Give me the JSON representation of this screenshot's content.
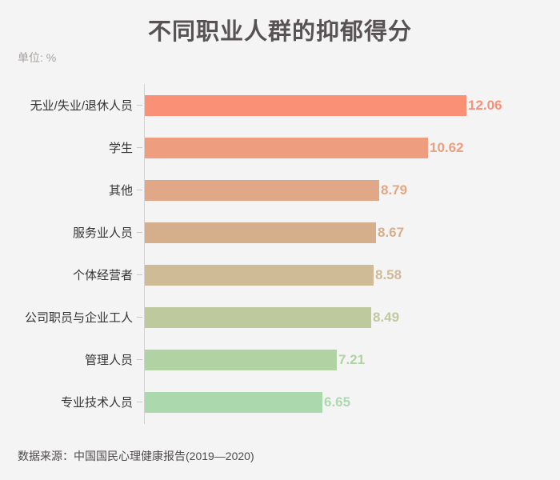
{
  "chart_data": {
    "type": "bar",
    "orientation": "horizontal",
    "title": "不同职业人群的抑郁得分",
    "unit_label": "单位: %",
    "source": "数据来源：中国国民心理健康报告(2019—2020)",
    "categories": [
      "无业/失业/退休人员",
      "学生",
      "其他",
      "服务业人员",
      "个体经营者",
      "公司职员与企业工人",
      "管理人员",
      "专业技术人员"
    ],
    "values": [
      12.06,
      10.62,
      8.79,
      8.67,
      8.58,
      8.49,
      7.21,
      6.65
    ],
    "value_labels": [
      "12.06",
      "10.62",
      "8.79",
      "8.67",
      "8.58",
      "8.49",
      "7.21",
      "6.65"
    ],
    "bar_colors": [
      "#FA9177",
      "#EE9D7E",
      "#E0A886",
      "#D5AF8B",
      "#CFBB96",
      "#BFC99E",
      "#B1D3A4",
      "#ABD9AD"
    ],
    "xlim": [
      0,
      12.06
    ],
    "grid": false,
    "legend": false,
    "background_color": "#F5F4F4",
    "title_color": "#575354",
    "axis_color": "#D3D1D1"
  }
}
